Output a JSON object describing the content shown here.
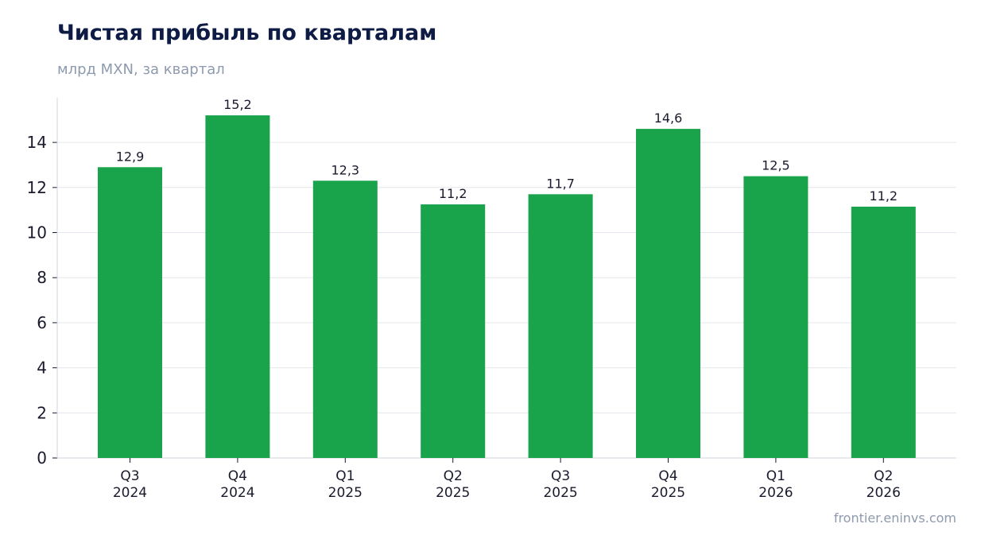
{
  "header": {
    "title": "Чистая прибыль по кварталам",
    "subtitle": "млрд MXN, за квартал"
  },
  "footer": {
    "source": "frontier.eninvs.com"
  },
  "colors": {
    "bar": "#19a34a",
    "grid": "#e3e6ec",
    "axis": "#cfd4dc"
  },
  "chart_data": {
    "type": "bar",
    "title": "Чистая прибыль по кварталам",
    "subtitle": "млрд MXN, за квартал",
    "categories": [
      [
        "Q3",
        "2024"
      ],
      [
        "Q4",
        "2024"
      ],
      [
        "Q1",
        "2025"
      ],
      [
        "Q2",
        "2025"
      ],
      [
        "Q3",
        "2025"
      ],
      [
        "Q4",
        "2025"
      ],
      [
        "Q1",
        "2026"
      ],
      [
        "Q2",
        "2026"
      ]
    ],
    "values": [
      12.9,
      15.2,
      12.3,
      11.25,
      11.7,
      14.6,
      12.5,
      11.15
    ],
    "data_labels": [
      "12,9",
      "15,2",
      "12,3",
      "11,2",
      "11,7",
      "14,6",
      "12,5",
      "11,2"
    ],
    "yticks": [
      0,
      2,
      4,
      6,
      8,
      10,
      12,
      14
    ],
    "ylim": [
      0,
      16
    ],
    "grid": true,
    "legend": "none"
  }
}
